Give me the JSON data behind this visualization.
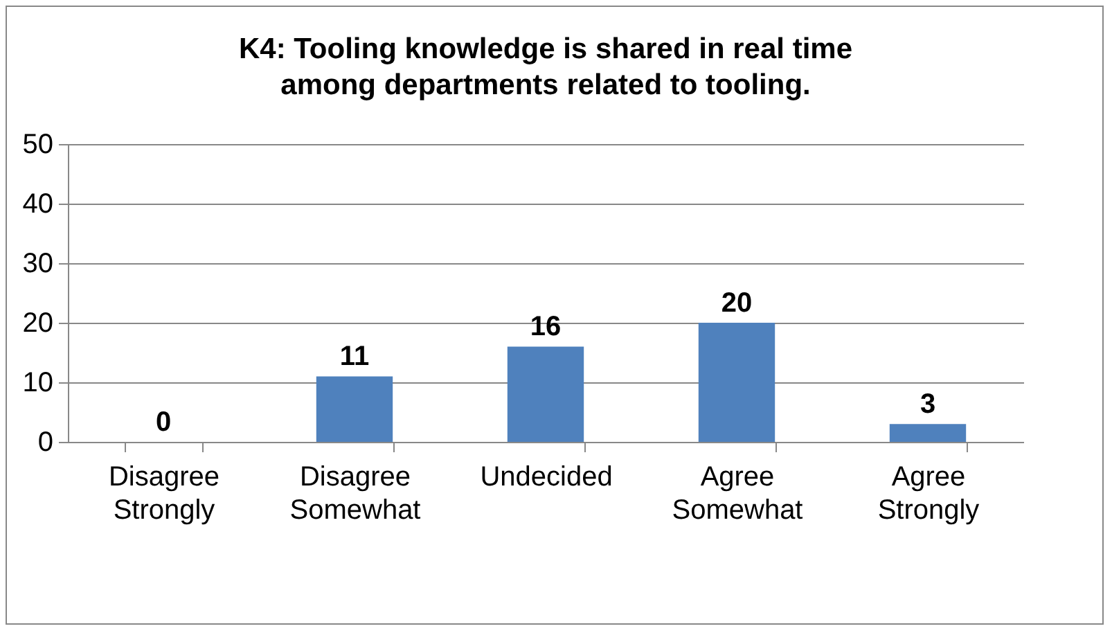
{
  "chart_data": {
    "type": "bar",
    "title": "K4: Tooling knowledge is shared in real time among departments related to tooling.",
    "categories": [
      "Disagree Strongly",
      "Disagree Somewhat",
      "Undecided",
      "Agree Somewhat",
      "Agree Strongly"
    ],
    "values": [
      0,
      11,
      16,
      20,
      3
    ],
    "color": "#4f81bd",
    "ylim": [
      0,
      50
    ],
    "yticks": [
      0,
      10,
      20,
      30,
      40,
      50
    ],
    "grid": "y",
    "data_labels": true
  }
}
